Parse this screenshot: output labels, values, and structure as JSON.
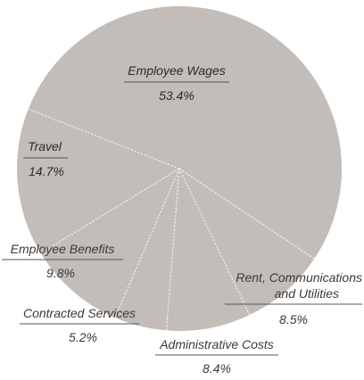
{
  "chart_data": {
    "type": "pie",
    "slices": [
      {
        "label": "Employee Wages",
        "value": 53.4,
        "display": "53.4%"
      },
      {
        "label": "Rent, Communications and Utilities",
        "value": 8.5,
        "display": "8.5%"
      },
      {
        "label": "Administrative Costs",
        "value": 8.4,
        "display": "8.4%"
      },
      {
        "label": "Contracted Services",
        "value": 5.2,
        "display": "5.2%"
      },
      {
        "label": "Employee Benefits",
        "value": 9.8,
        "display": "9.8%"
      },
      {
        "label": "Travel",
        "value": 14.7,
        "display": "14.7%"
      }
    ],
    "colors": {
      "fill": "#c2bdb9",
      "divider": "#f4f2ee",
      "label": "#3a3a3a"
    }
  }
}
